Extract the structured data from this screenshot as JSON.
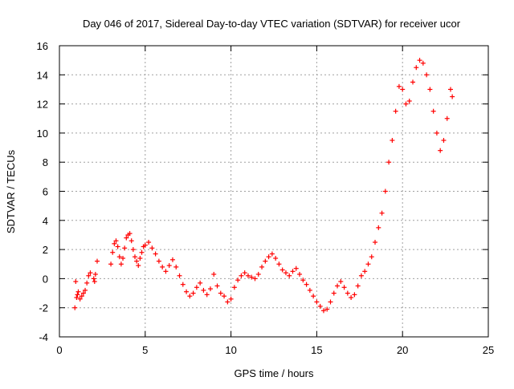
{
  "chart_data": {
    "type": "scatter",
    "title": "Day 046 of 2017, Sidereal Day-to-day VTEC variation (SDTVAR) for receiver ucor",
    "xlabel": "GPS time / hours",
    "ylabel": "SDTVAR / TECUs",
    "xlim": [
      0,
      25
    ],
    "ylim": [
      -4,
      16
    ],
    "xticks": [
      0,
      5,
      10,
      15,
      20,
      25
    ],
    "yticks": [
      -4,
      -2,
      0,
      2,
      4,
      6,
      8,
      10,
      12,
      14,
      16
    ],
    "grid": true,
    "marker": "+",
    "color": "#ff0000",
    "series": [
      {
        "name": "SDTVAR",
        "x": [
          0.9,
          0.95,
          1.0,
          1.05,
          1.1,
          1.2,
          1.3,
          1.4,
          1.5,
          1.6,
          1.7,
          1.8,
          2.0,
          2.1,
          2.2,
          2.05,
          3.0,
          3.1,
          3.2,
          3.3,
          3.4,
          3.5,
          3.6,
          3.7,
          3.8,
          3.9,
          4.0,
          4.1,
          4.2,
          4.3,
          4.4,
          4.5,
          4.6,
          4.7,
          4.8,
          4.9,
          5.0,
          5.2,
          5.4,
          5.6,
          5.8,
          6.0,
          6.2,
          6.4,
          6.6,
          6.8,
          7.0,
          7.2,
          7.4,
          7.6,
          7.8,
          8.0,
          8.2,
          8.4,
          8.6,
          8.8,
          9.0,
          9.2,
          9.4,
          9.6,
          9.8,
          10.0,
          10.2,
          10.4,
          10.6,
          10.8,
          11.0,
          11.2,
          11.4,
          11.6,
          11.8,
          12.0,
          12.2,
          12.4,
          12.6,
          12.8,
          13.0,
          13.2,
          13.4,
          13.6,
          13.8,
          14.0,
          14.2,
          14.4,
          14.6,
          14.8,
          15.0,
          15.2,
          15.4,
          15.6,
          15.8,
          16.0,
          16.2,
          16.4,
          16.6,
          16.8,
          17.0,
          17.2,
          17.4,
          17.6,
          17.8,
          18.0,
          18.2,
          18.4,
          18.6,
          18.8,
          19.0,
          19.2,
          19.4,
          19.6,
          19.8,
          20.0,
          20.2,
          20.4,
          20.6,
          20.8,
          21.0,
          21.2,
          21.4,
          21.6,
          21.8,
          22.0,
          22.2,
          22.4,
          22.6,
          22.8,
          22.9
        ],
        "y": [
          -2.0,
          -0.2,
          -1.3,
          -1.1,
          -0.9,
          -1.4,
          -1.2,
          -1.0,
          -0.8,
          -0.3,
          0.2,
          0.4,
          0.0,
          0.3,
          1.2,
          -0.2,
          1.0,
          1.8,
          2.4,
          2.6,
          2.2,
          1.5,
          1.0,
          1.4,
          2.1,
          2.8,
          3.0,
          3.1,
          2.6,
          2.0,
          1.5,
          1.2,
          0.9,
          1.4,
          1.8,
          2.2,
          2.3,
          2.5,
          2.1,
          1.7,
          1.2,
          0.8,
          0.5,
          0.9,
          1.3,
          0.8,
          0.2,
          -0.4,
          -0.9,
          -1.2,
          -1.0,
          -0.6,
          -0.3,
          -0.8,
          -1.1,
          -0.7,
          0.3,
          -0.5,
          -1.0,
          -1.2,
          -1.6,
          -1.4,
          -0.6,
          -0.1,
          0.2,
          0.4,
          0.2,
          0.1,
          0.0,
          0.3,
          0.8,
          1.2,
          1.5,
          1.7,
          1.4,
          1.0,
          0.6,
          0.4,
          0.2,
          0.5,
          0.7,
          0.3,
          -0.1,
          -0.4,
          -0.8,
          -1.2,
          -1.6,
          -1.9,
          -2.2,
          -2.1,
          -1.6,
          -1.0,
          -0.5,
          -0.2,
          -0.6,
          -1.0,
          -1.3,
          -1.1,
          -0.5,
          0.2,
          0.5,
          1.0,
          1.5,
          2.5,
          3.5,
          4.5,
          6.0,
          8.0,
          9.5,
          11.5,
          13.2,
          13.0,
          12.0,
          12.2,
          13.5,
          14.5,
          15.0,
          14.8,
          14.0,
          13.0,
          11.5,
          10.0,
          8.8,
          9.5,
          11.0,
          13.0,
          12.5
        ]
      }
    ]
  }
}
